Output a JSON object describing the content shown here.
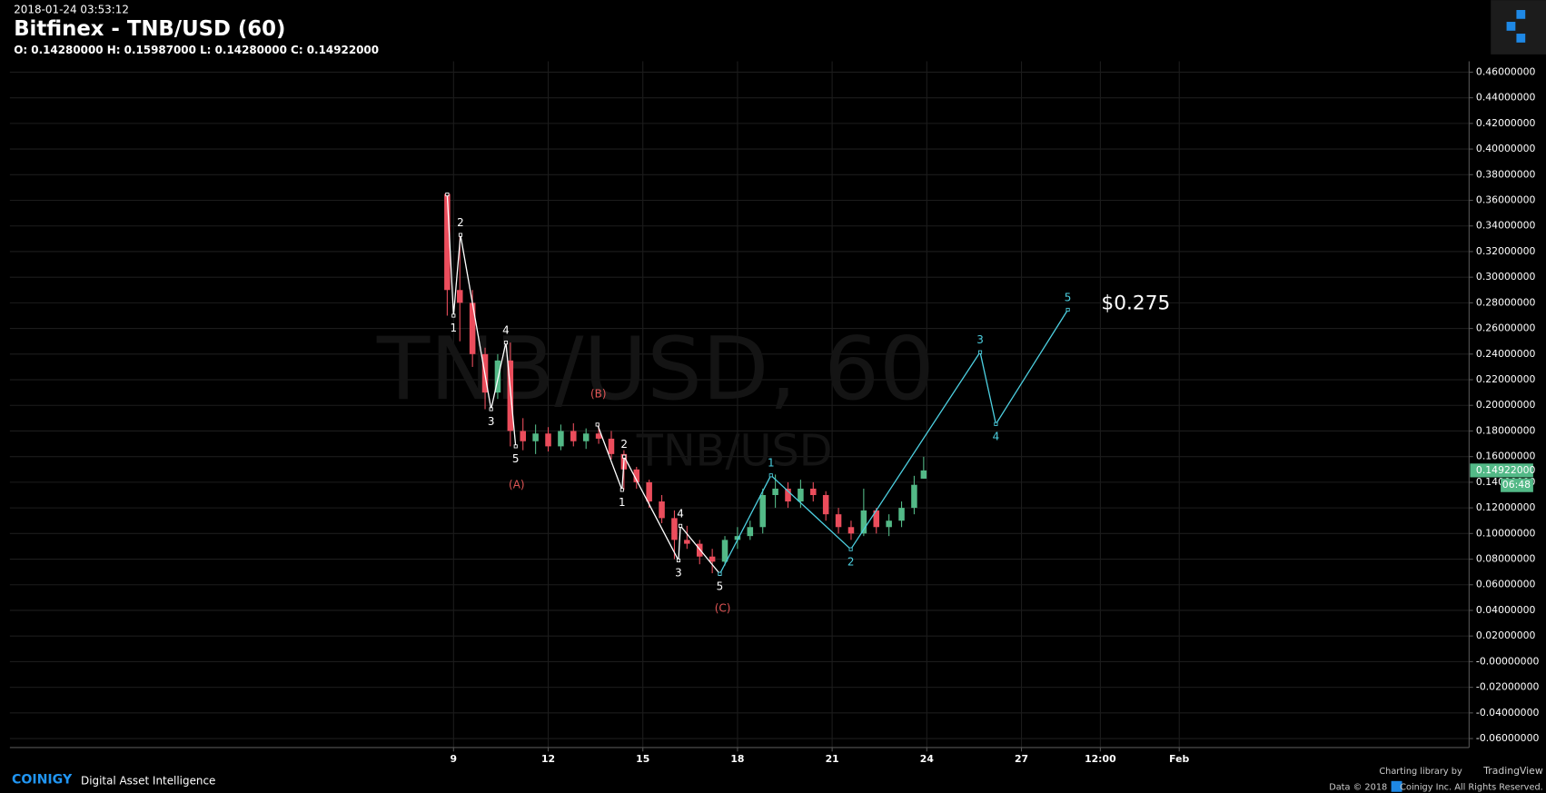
{
  "chart_data": {
    "type": "candlestick",
    "timestamp": "2018-01-24 03:53:12",
    "title": "Bitfinex - TNB/USD (60)",
    "ohlc": "O: 0.14280000 H: 0.15987000 L: 0.14280000 C: 0.14922000",
    "watermark": "TNB/USD, 60",
    "watermark_sub": "TNB/USD",
    "up_color": "#53b987",
    "down_color": "#eb4d5c",
    "grid": true,
    "x": [
      8.8,
      9.2,
      9.6,
      10.0,
      10.4,
      10.8,
      11.2,
      11.6,
      12.0,
      12.4,
      12.8,
      13.2,
      13.6,
      14.0,
      14.4,
      14.8,
      15.2,
      15.6,
      16.0,
      16.4,
      16.8,
      17.2,
      17.6,
      18.0,
      18.4,
      18.8,
      19.2,
      19.6,
      20.0,
      20.4,
      20.8,
      21.2,
      21.6,
      22.0,
      22.4,
      22.8,
      23.2,
      23.6,
      23.9
    ],
    "open": [
      0.365,
      0.29,
      0.28,
      0.24,
      0.21,
      0.235,
      0.18,
      0.172,
      0.178,
      0.168,
      0.18,
      0.172,
      0.178,
      0.174,
      0.162,
      0.15,
      0.14,
      0.125,
      0.112,
      0.095,
      0.092,
      0.082,
      0.078,
      0.095,
      0.098,
      0.105,
      0.13,
      0.135,
      0.125,
      0.135,
      0.13,
      0.115,
      0.105,
      0.1,
      0.118,
      0.105,
      0.11,
      0.12,
      0.1428
    ],
    "high": [
      0.366,
      0.333,
      0.29,
      0.245,
      0.24,
      0.249,
      0.19,
      0.185,
      0.183,
      0.185,
      0.186,
      0.182,
      0.186,
      0.18,
      0.165,
      0.152,
      0.142,
      0.13,
      0.118,
      0.106,
      0.095,
      0.088,
      0.098,
      0.105,
      0.11,
      0.135,
      0.146,
      0.14,
      0.142,
      0.14,
      0.133,
      0.12,
      0.11,
      0.135,
      0.12,
      0.115,
      0.125,
      0.145,
      0.15987
    ],
    "low": [
      0.27,
      0.25,
      0.23,
      0.197,
      0.205,
      0.168,
      0.165,
      0.162,
      0.164,
      0.165,
      0.168,
      0.166,
      0.17,
      0.158,
      0.134,
      0.135,
      0.12,
      0.108,
      0.08,
      0.088,
      0.076,
      0.069,
      0.075,
      0.088,
      0.095,
      0.1,
      0.12,
      0.12,
      0.12,
      0.125,
      0.11,
      0.1,
      0.095,
      0.098,
      0.1,
      0.098,
      0.105,
      0.115,
      0.1428
    ],
    "close": [
      0.29,
      0.28,
      0.24,
      0.21,
      0.235,
      0.18,
      0.172,
      0.178,
      0.168,
      0.18,
      0.172,
      0.178,
      0.174,
      0.162,
      0.15,
      0.14,
      0.125,
      0.112,
      0.095,
      0.092,
      0.082,
      0.078,
      0.095,
      0.098,
      0.105,
      0.13,
      0.135,
      0.125,
      0.135,
      0.13,
      0.115,
      0.105,
      0.1,
      0.118,
      0.105,
      0.11,
      0.12,
      0.138,
      0.14922
    ],
    "waves": [
      {
        "color": "#ffffff",
        "x": [
          8.8,
          9.0,
          9.22,
          10.19,
          10.66,
          10.97
        ],
        "y": [
          0.3646,
          0.27,
          0.333,
          0.197,
          0.249,
          0.168
        ],
        "labels": [
          null,
          "1",
          "2",
          "3",
          "4",
          "5"
        ]
      },
      {
        "color": "#ffffff",
        "x": [
          13.56,
          14.34,
          14.41,
          16.13,
          16.19,
          17.44
        ],
        "y": [
          0.185,
          0.134,
          0.16,
          0.079,
          0.106,
          0.0685
        ],
        "labels": [
          null,
          "1",
          "2",
          "3",
          "4",
          "5"
        ]
      },
      {
        "color": "#4dd0e1",
        "x": [
          17.44,
          19.06,
          21.59,
          25.69,
          26.19,
          28.47
        ],
        "y": [
          0.0685,
          0.1454,
          0.0877,
          0.2415,
          0.1854,
          0.2746
        ],
        "labels": [
          null,
          "1",
          "2",
          "3",
          "4",
          "5"
        ]
      }
    ],
    "annotations": [
      {
        "text": "(A)",
        "x": 11.0,
        "y": 0.1377,
        "color": "#e05555"
      },
      {
        "text": "(B)",
        "x": 13.59,
        "y": 0.2085,
        "color": "#e05555"
      },
      {
        "text": "(C)",
        "x": 17.53,
        "y": 0.0415,
        "color": "#e05555"
      },
      {
        "text": "$0.275",
        "x": 29.53,
        "y": 0.2792,
        "color": "#ffffff"
      }
    ],
    "last_price": {
      "value": 0.14922,
      "label": "0.14922000"
    },
    "countdown": "06:48",
    "xlim": [
      -5.0625,
      41.125
    ],
    "xticks": [
      9,
      12,
      15,
      18,
      21,
      24,
      27,
      {
        "value": 29.5,
        "label": "12:00"
      },
      {
        "value": 32,
        "label": "Feb"
      }
    ],
    "ylim": [
      -0.067,
      0.4685
    ],
    "yticks": [
      {
        "value": -0.06,
        "label": "-0.06000000"
      },
      {
        "value": -0.04,
        "label": "-0.04000000"
      },
      {
        "value": -0.02,
        "label": "-0.02000000"
      },
      {
        "value": 0,
        "label": "-0.00000000"
      },
      {
        "value": 0.02,
        "label": "0.02000000"
      },
      {
        "value": 0.04,
        "label": "0.04000000"
      },
      {
        "value": 0.06,
        "label": "0.06000000"
      },
      {
        "value": 0.08,
        "label": "0.08000000"
      },
      {
        "value": 0.1,
        "label": "0.10000000"
      },
      {
        "value": 0.12,
        "label": "0.12000000"
      },
      {
        "value": 0.14,
        "label": "0.14000000"
      },
      {
        "value": 0.16,
        "label": "0.16000000"
      },
      {
        "value": 0.18,
        "label": "0.18000000"
      },
      {
        "value": 0.2,
        "label": "0.20000000"
      },
      {
        "value": 0.22,
        "label": "0.22000000"
      },
      {
        "value": 0.24,
        "label": "0.24000000"
      },
      {
        "value": 0.26,
        "label": "0.26000000"
      },
      {
        "value": 0.28,
        "label": "0.28000000"
      },
      {
        "value": 0.3,
        "label": "0.30000000"
      },
      {
        "value": 0.32,
        "label": "0.32000000"
      },
      {
        "value": 0.34,
        "label": "0.34000000"
      },
      {
        "value": 0.36,
        "label": "0.36000000"
      },
      {
        "value": 0.38,
        "label": "0.38000000"
      },
      {
        "value": 0.4,
        "label": "0.40000000"
      },
      {
        "value": 0.42,
        "label": "0.42000000"
      },
      {
        "value": 0.44,
        "label": "0.44000000"
      },
      {
        "value": 0.46,
        "label": "0.46000000"
      }
    ]
  },
  "footer": {
    "brand": "COINIGY",
    "tagline": "Digital Asset Intelligence",
    "library": "Charting library by",
    "library_name": "TradingView",
    "data_year": "Data © 2018",
    "rights": "Coinigy Inc. All Rights Reserved."
  }
}
